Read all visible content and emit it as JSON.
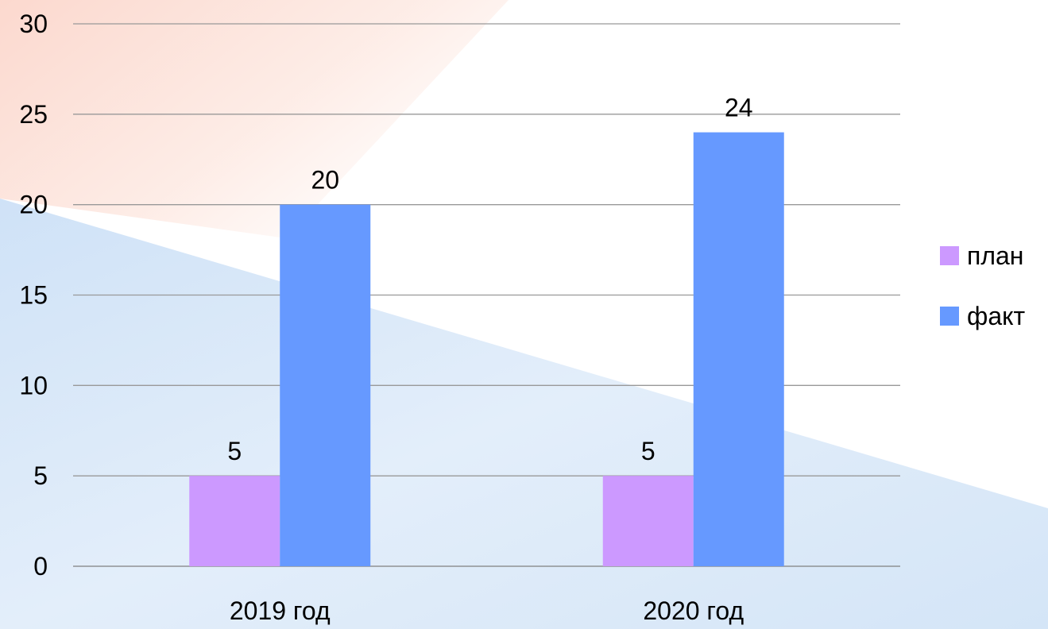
{
  "chart_data": {
    "type": "bar",
    "categories": [
      "2019 год",
      "2020 год"
    ],
    "series": [
      {
        "name": "план",
        "values": [
          5,
          5
        ],
        "color": "#cc99ff"
      },
      {
        "name": "факт",
        "values": [
          20,
          24
        ],
        "color": "#6699ff"
      }
    ],
    "ylim": [
      0,
      30
    ],
    "yticks": [
      "0",
      "5",
      "10",
      "15",
      "20",
      "25",
      "30"
    ],
    "ytick_values": [
      0,
      5,
      10,
      15,
      20,
      25,
      30
    ],
    "data_labels": [
      [
        "5",
        "5"
      ],
      [
        "20",
        "24"
      ]
    ],
    "grid": true,
    "legend_position": "right",
    "title": "",
    "xlabel": "",
    "ylabel": ""
  },
  "colors": {
    "gridline": "#999999",
    "axis": "#808080",
    "background_red": "#fde1d9",
    "background_blue": "#d6e6f8"
  }
}
